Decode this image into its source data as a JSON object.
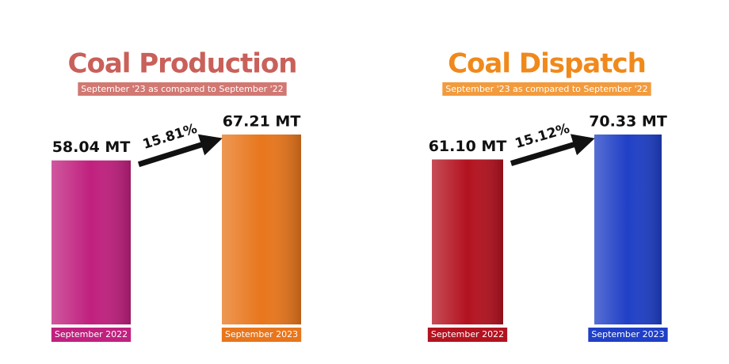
{
  "chart_data": [
    {
      "type": "bar",
      "title": "Coal Production",
      "subtitle": "September '23 as compared to September '22",
      "title_color": "#c9605a",
      "categories": [
        "September 2022",
        "September 2023"
      ],
      "values": [
        58.04,
        67.21
      ],
      "value_labels": [
        "58.04 MT",
        "67.21 MT"
      ],
      "colors": [
        "#c0207e",
        "#e8761c"
      ],
      "annotation": "15.81%"
    },
    {
      "type": "bar",
      "title": "Coal Dispatch",
      "subtitle": "September '23 as compared to September '22",
      "title_color": "#f0891c",
      "categories": [
        "September 2022",
        "September 2023"
      ],
      "values": [
        61.1,
        70.33
      ],
      "value_labels": [
        "61.10 MT",
        "70.33 MT"
      ],
      "colors": [
        "#b3121f",
        "#1f3fc6"
      ],
      "annotation": "15.12%"
    }
  ]
}
